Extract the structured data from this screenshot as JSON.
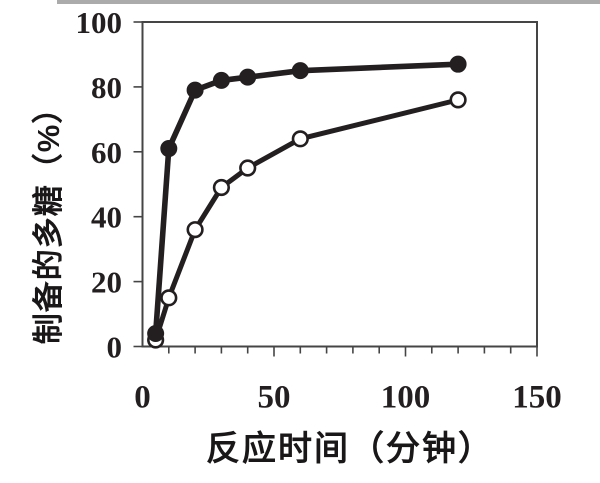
{
  "figure": {
    "background_color": "#ffffff"
  },
  "chart_data": {
    "type": "line",
    "title": "",
    "xlabel": "反应时间（分钟）",
    "ylabel": "制备的多糖（%）",
    "x": [
      5,
      10,
      20,
      30,
      40,
      60,
      120
    ],
    "series": [
      {
        "name": "solid-circle-series",
        "marker": "filled-circle",
        "values": [
          4,
          61,
          79,
          82,
          83,
          85,
          87
        ]
      },
      {
        "name": "open-circle-series",
        "marker": "open-circle",
        "values": [
          2,
          15,
          36,
          49,
          55,
          64,
          76
        ]
      }
    ],
    "xlim": [
      0,
      150
    ],
    "ylim": [
      0,
      100
    ],
    "x_major_ticks": [
      0,
      50,
      100,
      150
    ],
    "x_minor_step": 10,
    "y_major_ticks": [
      0,
      20,
      40,
      60,
      80,
      100
    ],
    "grid": "off",
    "legend": "none",
    "colors": {
      "line": "#231f20",
      "frame": "#454545",
      "marker_fill": "#231f20",
      "open_marker_fill": "#ffffff",
      "background": "#ffffff"
    }
  }
}
